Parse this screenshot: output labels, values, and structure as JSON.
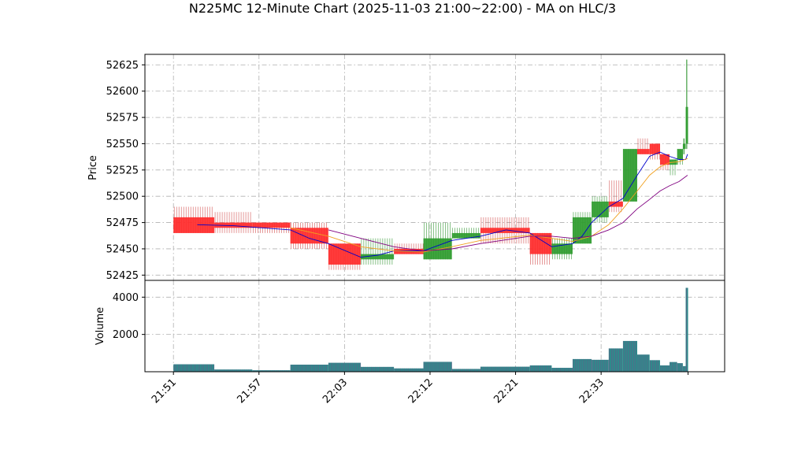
{
  "chart_data": {
    "type": "candlestick",
    "title": "N225MC 12-Minute Chart (2025-11-03 21:00~22:00) - MA on HLC/3",
    "price_panel": {
      "ylabel": "Price",
      "ylim": [
        52420,
        52635
      ],
      "yticks": [
        52425,
        52450,
        52475,
        52500,
        52525,
        52550,
        52575,
        52600,
        52625
      ]
    },
    "volume_panel": {
      "ylabel": "Volume",
      "ylim": [
        0,
        4900
      ],
      "yticks": [
        2000,
        4000
      ],
      "yticklabels": [
        "2000",
        "4000"
      ]
    },
    "xlim": [
      -3,
      58
    ],
    "xticks": [
      {
        "pos": 0,
        "label": "21:51"
      },
      {
        "pos": 9,
        "label": "21:57"
      },
      {
        "pos": 18,
        "label": "22:03"
      },
      {
        "pos": 27,
        "label": "22:12"
      },
      {
        "pos": 36,
        "label": "22:21"
      },
      {
        "pos": 45,
        "label": "22:33"
      }
    ],
    "grid": true,
    "colors": {
      "up": "#2e9b2e",
      "down": "#ff2a2a",
      "wick_down": "#d45555",
      "wick_up": "#3a9a3a",
      "volume_bar": "#2e8b8b",
      "volume_edge": "#8a3a8a",
      "ma_fast": "#0000cc",
      "ma_mid": "#f0a020",
      "ma_slow": "#800080"
    },
    "candles": [
      {
        "x0": 0,
        "x1": 4.3,
        "o": 52480,
        "h": 52490,
        "l": 52465,
        "c": 52465,
        "vol": 400
      },
      {
        "x0": 4.3,
        "x1": 8.3,
        "o": 52475,
        "h": 52485,
        "l": 52465,
        "c": 52470,
        "vol": 120
      },
      {
        "x0": 8.3,
        "x1": 12.3,
        "o": 52475,
        "h": 52475,
        "l": 52465,
        "c": 52470,
        "vol": 80
      },
      {
        "x0": 12.3,
        "x1": 16.3,
        "o": 52470,
        "h": 52475,
        "l": 52450,
        "c": 52455,
        "vol": 380
      },
      {
        "x0": 16.3,
        "x1": 19.7,
        "o": 52455,
        "h": 52455,
        "l": 52430,
        "c": 52435,
        "vol": 480
      },
      {
        "x0": 19.7,
        "x1": 23.2,
        "o": 52440,
        "h": 52460,
        "l": 52435,
        "c": 52445,
        "vol": 260
      },
      {
        "x0": 23.2,
        "x1": 26.3,
        "o": 52450,
        "h": 52455,
        "l": 52445,
        "c": 52445,
        "vol": 180
      },
      {
        "x0": 26.3,
        "x1": 29.3,
        "o": 52440,
        "h": 52475,
        "l": 52440,
        "c": 52460,
        "vol": 530
      },
      {
        "x0": 29.3,
        "x1": 32.3,
        "o": 52460,
        "h": 52470,
        "l": 52460,
        "c": 52465,
        "vol": 150
      },
      {
        "x0": 32.3,
        "x1": 37.5,
        "o": 52470,
        "h": 52480,
        "l": 52455,
        "c": 52465,
        "vol": 270
      },
      {
        "x0": 37.5,
        "x1": 39.8,
        "o": 52465,
        "h": 52465,
        "l": 52435,
        "c": 52445,
        "vol": 340
      },
      {
        "x0": 39.8,
        "x1": 42.0,
        "o": 52445,
        "h": 52460,
        "l": 52440,
        "c": 52455,
        "vol": 210
      },
      {
        "x0": 42.0,
        "x1": 44.0,
        "o": 52455,
        "h": 52485,
        "l": 52455,
        "c": 52480,
        "vol": 680
      },
      {
        "x0": 44.0,
        "x1": 45.8,
        "o": 52480,
        "h": 52500,
        "l": 52475,
        "c": 52495,
        "vol": 640
      },
      {
        "x0": 45.8,
        "x1": 47.3,
        "o": 52495,
        "h": 52515,
        "l": 52485,
        "c": 52490,
        "vol": 1250
      },
      {
        "x0": 47.3,
        "x1": 48.8,
        "o": 52495,
        "h": 52545,
        "l": 52495,
        "c": 52545,
        "vol": 1650
      },
      {
        "x0": 48.8,
        "x1": 50.1,
        "o": 52545,
        "h": 52555,
        "l": 52540,
        "c": 52540,
        "vol": 920
      },
      {
        "x0": 50.1,
        "x1": 51.2,
        "o": 52550,
        "h": 52550,
        "l": 52535,
        "c": 52540,
        "vol": 620
      },
      {
        "x0": 51.2,
        "x1": 52.2,
        "o": 52540,
        "h": 52540,
        "l": 52525,
        "c": 52530,
        "vol": 340
      },
      {
        "x0": 52.2,
        "x1": 53.0,
        "o": 52530,
        "h": 52535,
        "l": 52520,
        "c": 52535,
        "vol": 520
      },
      {
        "x0": 53.0,
        "x1": 53.6,
        "o": 52535,
        "h": 52545,
        "l": 52530,
        "c": 52545,
        "vol": 460
      },
      {
        "x0": 53.6,
        "x1": 53.9,
        "o": 52545,
        "h": 52555,
        "l": 52540,
        "c": 52550,
        "vol": 300
      },
      {
        "x0": 53.9,
        "x1": 54.15,
        "o": 52550,
        "h": 52630,
        "l": 52545,
        "c": 52585,
        "vol": 4500
      }
    ],
    "series": [
      {
        "key": "ma_fast",
        "points": [
          [
            2.5,
            52473
          ],
          [
            6.3,
            52472
          ],
          [
            12.3,
            52468
          ],
          [
            14.3,
            52460
          ],
          [
            16.3,
            52455
          ],
          [
            19.7,
            52442
          ],
          [
            21.5,
            52444
          ],
          [
            23.2,
            52448
          ],
          [
            26.3,
            52448
          ],
          [
            29.3,
            52458
          ],
          [
            32.3,
            52462
          ],
          [
            35,
            52468
          ],
          [
            37.5,
            52465
          ],
          [
            39.8,
            52452
          ],
          [
            42,
            52455
          ],
          [
            43,
            52462
          ],
          [
            44,
            52475
          ],
          [
            45.8,
            52490
          ],
          [
            47.3,
            52498
          ],
          [
            48.8,
            52520
          ],
          [
            50.1,
            52538
          ],
          [
            51.2,
            52542
          ],
          [
            52.2,
            52538
          ],
          [
            53.2,
            52535
          ],
          [
            53.9,
            52535
          ],
          [
            54.1,
            52540
          ]
        ]
      },
      {
        "key": "ma_mid",
        "points": [
          [
            12.3,
            52470
          ],
          [
            16.3,
            52462
          ],
          [
            19.7,
            52452
          ],
          [
            23.2,
            52448
          ],
          [
            26.3,
            52447
          ],
          [
            29.3,
            52452
          ],
          [
            32.3,
            52458
          ],
          [
            37.5,
            52463
          ],
          [
            39.8,
            52460
          ],
          [
            42,
            52457
          ],
          [
            44,
            52462
          ],
          [
            45.8,
            52473
          ],
          [
            47.3,
            52488
          ],
          [
            48.8,
            52505
          ],
          [
            50.1,
            52520
          ],
          [
            51.2,
            52528
          ],
          [
            52.2,
            52532
          ],
          [
            53.2,
            52533
          ],
          [
            54.1,
            52536
          ]
        ]
      },
      {
        "key": "ma_slow",
        "points": [
          [
            16.3,
            52468
          ],
          [
            19.7,
            52460
          ],
          [
            23.2,
            52452
          ],
          [
            26.3,
            52448
          ],
          [
            29.3,
            52450
          ],
          [
            32.3,
            52455
          ],
          [
            37.5,
            52462
          ],
          [
            39.8,
            52462
          ],
          [
            42,
            52460
          ],
          [
            44,
            52462
          ],
          [
            45.8,
            52468
          ],
          [
            47.3,
            52475
          ],
          [
            48.8,
            52488
          ],
          [
            50.1,
            52497
          ],
          [
            51.2,
            52505
          ],
          [
            52.2,
            52510
          ],
          [
            53.2,
            52514
          ],
          [
            54.1,
            52520
          ]
        ]
      }
    ]
  }
}
